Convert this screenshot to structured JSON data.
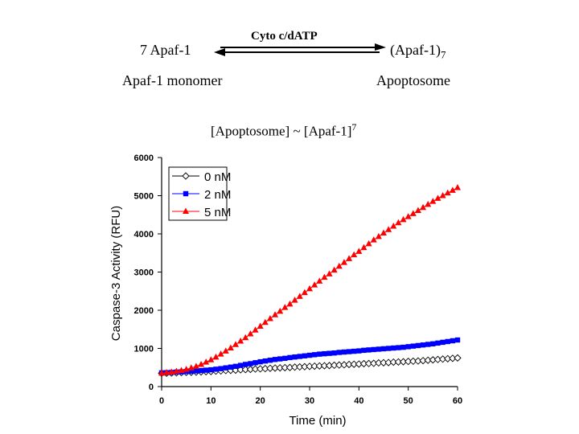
{
  "scheme": {
    "reactant": "7 Apaf-1",
    "reactant_label": "Apaf-1 monomer",
    "cofactors": "Cyto c/dATP",
    "product": "(Apaf-1)",
    "product_subscript": "7",
    "product_label": "Apoptosome",
    "relation": "[Apoptosome] ~ [Apaf-1]",
    "relation_superscript": "7"
  },
  "chart_data": {
    "type": "line",
    "title": "",
    "xlabel": "Time (min)",
    "ylabel": "Caspase-3 Activity (RFU)",
    "xlim": [
      0,
      60
    ],
    "ylim": [
      0,
      6000
    ],
    "xticks": [
      0,
      10,
      20,
      30,
      40,
      50,
      60
    ],
    "yticks": [
      0,
      1000,
      2000,
      3000,
      4000,
      5000,
      6000
    ],
    "grid": false,
    "legend_position": "top-left",
    "x": [
      0,
      1,
      2,
      3,
      4,
      5,
      6,
      7,
      8,
      9,
      10,
      11,
      12,
      13,
      14,
      15,
      16,
      17,
      18,
      19,
      20,
      21,
      22,
      23,
      24,
      25,
      26,
      27,
      28,
      29,
      30,
      31,
      32,
      33,
      34,
      35,
      36,
      37,
      38,
      39,
      40,
      41,
      42,
      43,
      44,
      45,
      46,
      47,
      48,
      49,
      50,
      51,
      52,
      53,
      54,
      55,
      56,
      57,
      58,
      59,
      60
    ],
    "series": [
      {
        "name": "0 nM",
        "color": "#000000",
        "marker": "diamond-open",
        "values": [
          350,
          350,
          355,
          360,
          365,
          370,
          375,
          380,
          385,
          390,
          395,
          405,
          410,
          420,
          425,
          430,
          440,
          445,
          450,
          460,
          465,
          470,
          480,
          485,
          490,
          495,
          500,
          510,
          515,
          520,
          530,
          535,
          540,
          545,
          550,
          560,
          565,
          570,
          580,
          585,
          590,
          600,
          605,
          610,
          620,
          625,
          630,
          640,
          645,
          650,
          660,
          665,
          670,
          680,
          690,
          700,
          710,
          720,
          730,
          740,
          750
        ]
      },
      {
        "name": "2 nM",
        "color": "#0000ff",
        "marker": "square",
        "values": [
          360,
          365,
          370,
          380,
          385,
          395,
          400,
          410,
          420,
          430,
          440,
          455,
          470,
          490,
          510,
          530,
          555,
          580,
          600,
          625,
          650,
          670,
          690,
          710,
          725,
          740,
          760,
          775,
          790,
          805,
          820,
          835,
          850,
          860,
          870,
          880,
          895,
          905,
          915,
          925,
          935,
          950,
          960,
          970,
          980,
          990,
          1000,
          1010,
          1020,
          1030,
          1045,
          1060,
          1075,
          1090,
          1105,
          1120,
          1140,
          1160,
          1180,
          1200,
          1220
        ]
      },
      {
        "name": "5 nM",
        "color": "#ff0000",
        "marker": "triangle",
        "values": [
          350,
          365,
          380,
          400,
          420,
          450,
          490,
          530,
          580,
          640,
          700,
          770,
          850,
          930,
          1010,
          1100,
          1190,
          1280,
          1380,
          1480,
          1580,
          1680,
          1780,
          1880,
          1970,
          2070,
          2160,
          2260,
          2360,
          2460,
          2560,
          2660,
          2760,
          2860,
          2950,
          3050,
          3150,
          3250,
          3350,
          3450,
          3540,
          3640,
          3740,
          3840,
          3930,
          4020,
          4110,
          4200,
          4290,
          4370,
          4450,
          4530,
          4610,
          4690,
          4770,
          4850,
          4930,
          5000,
          5070,
          5140,
          5210
        ]
      }
    ]
  }
}
